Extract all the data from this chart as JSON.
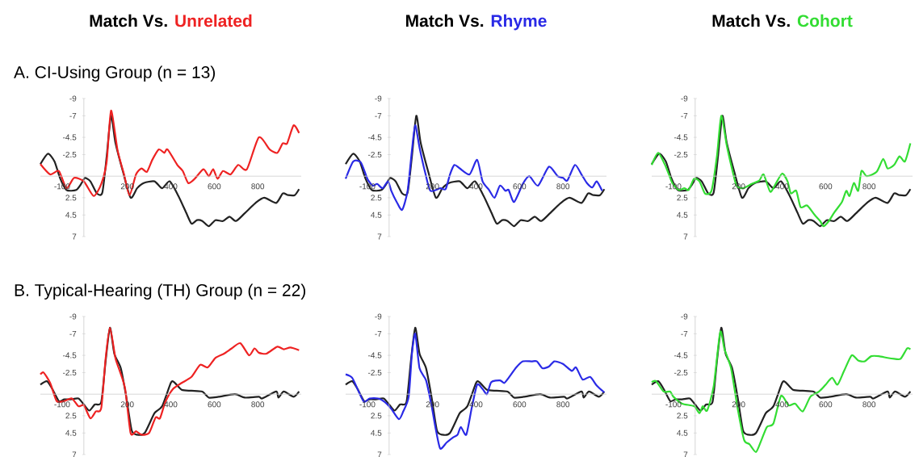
{
  "chart_data": [
    {
      "type": "line",
      "title": "Match Vs.",
      "subtitle": "A. CI-Using Group (n = 13)",
      "xlim": [
        -200,
        1000
      ],
      "ylim": [
        7,
        -9
      ],
      "xticks": [
        -100,
        200,
        400,
        600,
        800
      ],
      "yticks": [
        -9,
        -7,
        -4.5,
        -2.5,
        2.5,
        4.5,
        7
      ],
      "series": [
        {
          "color": "#222222",
          "x": [
            -200,
            -165,
            -135,
            -110,
            -80,
            -35,
            -10,
            5,
            30,
            60,
            85,
            105,
            125,
            145,
            180,
            215,
            245,
            275,
            325,
            360,
            395,
            435,
            470,
            495,
            520,
            545,
            575,
            605,
            640,
            670,
            700,
            740,
            790,
            830,
            885,
            915,
            940,
            970,
            990
          ],
          "values": [
            -1.4,
            -2.6,
            -1.7,
            0.2,
            1.6,
            1.6,
            0.8,
            0.2,
            0.6,
            2.0,
            1.9,
            -2.3,
            -7.0,
            -3.9,
            -0.5,
            2.5,
            1.4,
            0.8,
            0.6,
            1.4,
            0.6,
            2.3,
            4.2,
            5.5,
            5.1,
            5.2,
            5.8,
            5.1,
            5.2,
            4.7,
            5.2,
            4.3,
            3.1,
            2.5,
            3.1,
            2.0,
            2.2,
            2.2,
            1.5
          ]
        },
        {
          "name": "Unrelated",
          "color": "#ee2222",
          "x": [
            -200,
            -155,
            -115,
            -80,
            -45,
            0,
            45,
            80,
            105,
            125,
            155,
            185,
            210,
            240,
            265,
            290,
            315,
            345,
            370,
            385,
            430,
            455,
            480,
            510,
            550,
            575,
            595,
            615,
            640,
            675,
            710,
            750,
            805,
            855,
            890,
            915,
            935,
            965,
            990
          ],
          "values": [
            -1.4,
            -0.2,
            -0.6,
            1.4,
            0.2,
            0.6,
            2.3,
            0.9,
            -1.7,
            -7.6,
            -3.0,
            -0.2,
            2.2,
            -0.2,
            -0.9,
            -0.5,
            -1.9,
            -3.1,
            -2.7,
            -3.1,
            -1.3,
            -0.6,
            0.8,
            0.3,
            -0.8,
            0.0,
            -0.8,
            0.3,
            -0.6,
            -0.2,
            -1.3,
            -0.8,
            -4.5,
            -3.1,
            -2.7,
            -3.8,
            -3.8,
            -5.9,
            -5.0
          ]
        }
      ]
    },
    {
      "type": "line",
      "title": "Match Vs.",
      "xlim": [
        -200,
        1000
      ],
      "ylim": [
        7,
        -9
      ],
      "xticks": [
        -100,
        200,
        400,
        600,
        800
      ],
      "yticks": [
        -9,
        -7,
        -4.5,
        -2.5,
        2.5,
        4.5,
        7
      ],
      "series": [
        {
          "color": "#222222",
          "x": [
            -200,
            -165,
            -135,
            -110,
            -80,
            -35,
            -10,
            5,
            30,
            60,
            85,
            105,
            125,
            145,
            180,
            215,
            245,
            275,
            325,
            360,
            395,
            435,
            470,
            495,
            520,
            545,
            575,
            605,
            640,
            670,
            700,
            740,
            790,
            830,
            885,
            915,
            940,
            970,
            990
          ],
          "values": [
            -1.4,
            -2.6,
            -1.7,
            0.2,
            1.6,
            1.6,
            0.8,
            0.2,
            0.6,
            2.0,
            1.9,
            -2.3,
            -7.0,
            -3.9,
            -0.5,
            2.5,
            1.4,
            0.8,
            0.6,
            1.4,
            0.6,
            2.3,
            4.2,
            5.5,
            5.1,
            5.2,
            5.8,
            5.1,
            5.2,
            4.7,
            5.2,
            4.3,
            3.1,
            2.5,
            3.1,
            2.0,
            2.2,
            2.2,
            1.5
          ]
        },
        {
          "name": "Rhyme",
          "color": "#2a2ae6",
          "x": [
            -200,
            -165,
            -130,
            -100,
            -75,
            -55,
            -30,
            -5,
            10,
            35,
            60,
            85,
            105,
            120,
            140,
            165,
            190,
            235,
            260,
            280,
            300,
            325,
            370,
            405,
            430,
            460,
            485,
            510,
            535,
            550,
            575,
            615,
            645,
            685,
            735,
            775,
            800,
            820,
            855,
            885,
            910,
            935,
            955,
            980
          ],
          "values": [
            0.3,
            -1.7,
            -1.6,
            0.3,
            1.1,
            0.9,
            1.4,
            0.6,
            1.7,
            3.0,
            3.9,
            1.7,
            -3.0,
            -5.9,
            -3.3,
            -0.5,
            1.7,
            1.4,
            1.5,
            -0.2,
            -1.3,
            -0.9,
            -0.2,
            -1.9,
            0.6,
            1.6,
            2.5,
            1.1,
            1.7,
            1.6,
            3.0,
            0.9,
            0.0,
            1.1,
            -1.1,
            0.0,
            0.2,
            0.5,
            -1.3,
            -0.2,
            0.8,
            1.3,
            0.6,
            1.7
          ]
        }
      ]
    },
    {
      "type": "line",
      "title": "Match Vs.",
      "xlim": [
        -200,
        1000
      ],
      "ylim": [
        7,
        -9
      ],
      "xticks": [
        -100,
        200,
        400,
        600,
        800
      ],
      "yticks": [
        -9,
        -7,
        -4.5,
        -2.5,
        2.5,
        4.5,
        7
      ],
      "series": [
        {
          "color": "#222222",
          "x": [
            -200,
            -165,
            -135,
            -110,
            -80,
            -35,
            -10,
            5,
            30,
            60,
            85,
            105,
            125,
            145,
            180,
            215,
            245,
            275,
            325,
            360,
            395,
            435,
            470,
            495,
            520,
            545,
            575,
            605,
            640,
            670,
            700,
            740,
            790,
            830,
            885,
            915,
            940,
            970,
            990
          ],
          "values": [
            -1.4,
            -2.6,
            -1.7,
            0.2,
            1.6,
            1.6,
            0.8,
            0.2,
            0.6,
            2.0,
            1.9,
            -2.3,
            -7.0,
            -3.9,
            -0.5,
            2.5,
            1.4,
            0.8,
            0.6,
            1.4,
            0.6,
            2.3,
            4.2,
            5.5,
            5.1,
            5.2,
            5.8,
            5.1,
            5.2,
            4.7,
            5.2,
            4.3,
            3.1,
            2.5,
            3.1,
            2.0,
            2.2,
            2.2,
            1.5
          ]
        },
        {
          "name": "Cohort",
          "color": "#33dd33",
          "x": [
            -200,
            -170,
            -135,
            -105,
            -75,
            -50,
            -30,
            -5,
            20,
            45,
            75,
            100,
            120,
            145,
            170,
            190,
            220,
            260,
            295,
            315,
            345,
            370,
            400,
            425,
            440,
            465,
            485,
            515,
            550,
            575,
            590,
            615,
            640,
            675,
            695,
            710,
            730,
            750,
            765,
            790,
            835,
            865,
            885,
            915,
            940,
            965,
            990
          ],
          "values": [
            -1.3,
            -2.7,
            -1.1,
            0.8,
            1.6,
            1.4,
            1.6,
            0.3,
            0.6,
            2.0,
            1.7,
            -2.3,
            -7.0,
            -3.6,
            -0.8,
            1.1,
            1.4,
            0.9,
            0.5,
            -0.2,
            1.8,
            0.9,
            -0.3,
            0.6,
            2.0,
            1.7,
            3.6,
            3.4,
            4.5,
            5.2,
            5.8,
            5.2,
            4.2,
            3.0,
            1.7,
            2.3,
            0.8,
            1.7,
            -0.6,
            0.0,
            -0.5,
            -2.0,
            -0.9,
            -1.3,
            -2.3,
            -1.7,
            -3.8
          ]
        }
      ]
    },
    {
      "type": "line",
      "subtitle": "B. Typical-Hearing (TH) Group (n = 22)",
      "xlim": [
        -200,
        1000
      ],
      "ylim": [
        7,
        -9
      ],
      "xticks": [
        -100,
        200,
        400,
        600,
        800
      ],
      "yticks": [
        -9,
        -7,
        -4.5,
        -2.5,
        2.5,
        4.5,
        7
      ],
      "series": [
        {
          "color": "#222222",
          "x": [
            -200,
            -170,
            -145,
            -115,
            -90,
            -60,
            -25,
            0,
            25,
            50,
            80,
            100,
            120,
            140,
            170,
            195,
            220,
            245,
            280,
            325,
            360,
            400,
            415,
            450,
            495,
            545,
            575,
            620,
            695,
            740,
            805,
            820,
            885,
            895,
            920,
            965,
            990
          ],
          "values": [
            -1.1,
            -1.5,
            -0.6,
            0.8,
            0.6,
            0.6,
            0.5,
            1.2,
            1.9,
            1.2,
            0.9,
            -3.8,
            -7.7,
            -4.7,
            -3.0,
            0.3,
            4.2,
            4.7,
            4.5,
            2.2,
            1.4,
            -1.3,
            -1.4,
            -0.5,
            -0.4,
            -0.3,
            0.4,
            0.3,
            0.0,
            0.4,
            0.3,
            0.5,
            -0.3,
            0.4,
            -0.3,
            0.3,
            -0.3
          ]
        },
        {
          "color": "#ee2222",
          "x": [
            -200,
            -185,
            -155,
            -125,
            -90,
            -55,
            -25,
            0,
            30,
            55,
            80,
            100,
            120,
            145,
            165,
            190,
            215,
            240,
            265,
            300,
            330,
            350,
            375,
            410,
            450,
            495,
            535,
            570,
            605,
            645,
            680,
            720,
            760,
            785,
            805,
            840,
            890,
            920,
            950,
            990
          ],
          "values": [
            -2.3,
            -2.5,
            -1.3,
            0.8,
            0.8,
            0.5,
            1.4,
            1.3,
            2.8,
            2.0,
            1.6,
            -4.1,
            -7.7,
            -4.2,
            -2.7,
            -0.6,
            4.5,
            4.3,
            4.7,
            4.5,
            2.7,
            2.8,
            0.9,
            -0.6,
            -1.3,
            -2.0,
            -3.4,
            -3.1,
            -4.2,
            -4.7,
            -5.3,
            -5.9,
            -4.5,
            -5.3,
            -4.8,
            -4.7,
            -5.5,
            -5.2,
            -5.4,
            -5.1
          ]
        }
      ]
    },
    {
      "type": "line",
      "xlim": [
        -200,
        1000
      ],
      "ylim": [
        7,
        -9
      ],
      "xticks": [
        -100,
        200,
        400,
        600,
        800
      ],
      "yticks": [
        -9,
        -7,
        -4.5,
        -2.5,
        2.5,
        4.5,
        7
      ],
      "series": [
        {
          "color": "#222222",
          "x": [
            -200,
            -170,
            -145,
            -115,
            -90,
            -60,
            -25,
            0,
            25,
            50,
            80,
            100,
            120,
            140,
            170,
            195,
            220,
            245,
            280,
            325,
            360,
            400,
            415,
            450,
            495,
            545,
            575,
            620,
            695,
            740,
            805,
            820,
            885,
            895,
            920,
            965,
            990
          ],
          "values": [
            -1.1,
            -1.5,
            -0.6,
            0.8,
            0.6,
            0.6,
            0.5,
            1.2,
            1.9,
            1.2,
            0.9,
            -3.8,
            -7.7,
            -4.7,
            -3.0,
            0.3,
            4.2,
            4.7,
            4.5,
            2.2,
            1.4,
            -1.3,
            -1.4,
            -0.5,
            -0.4,
            -0.3,
            0.4,
            0.3,
            0.0,
            0.4,
            0.3,
            0.5,
            -0.3,
            0.4,
            -0.3,
            0.3,
            -0.3
          ]
        },
        {
          "color": "#2a2ae6",
          "x": [
            -200,
            -170,
            -140,
            -115,
            -90,
            -50,
            -20,
            10,
            45,
            65,
            90,
            105,
            120,
            140,
            170,
            195,
            215,
            235,
            265,
            295,
            315,
            330,
            355,
            380,
            405,
            430,
            450,
            470,
            510,
            530,
            550,
            585,
            615,
            655,
            680,
            705,
            735,
            760,
            800,
            840,
            860,
            890,
            925,
            955,
            990
          ],
          "values": [
            -2.3,
            -1.9,
            -0.3,
            0.9,
            0.5,
            0.5,
            0.9,
            1.7,
            2.9,
            2.0,
            0.3,
            -4.7,
            -7.0,
            -3.0,
            -1.6,
            1.3,
            4.1,
            6.3,
            5.6,
            5.0,
            4.7,
            3.8,
            4.7,
            1.6,
            -1.1,
            -0.6,
            0.0,
            -1.4,
            -1.6,
            -1.3,
            -1.9,
            -3.1,
            -3.8,
            -3.8,
            -3.8,
            -3.0,
            -3.2,
            -3.8,
            -3.5,
            -2.7,
            -3.1,
            -1.7,
            -2.0,
            -1.0,
            -0.2
          ]
        }
      ]
    },
    {
      "type": "line",
      "xlim": [
        -200,
        1000
      ],
      "ylim": [
        7,
        -9
      ],
      "xticks": [
        -100,
        200,
        400,
        600,
        800
      ],
      "yticks": [
        -9,
        -7,
        -4.5,
        -2.5,
        2.5,
        4.5,
        7
      ],
      "series": [
        {
          "color": "#222222",
          "x": [
            -200,
            -170,
            -145,
            -115,
            -90,
            -60,
            -25,
            0,
            25,
            50,
            80,
            100,
            120,
            140,
            170,
            195,
            220,
            245,
            280,
            325,
            360,
            400,
            415,
            450,
            495,
            545,
            575,
            620,
            695,
            740,
            805,
            820,
            885,
            895,
            920,
            965,
            990
          ],
          "values": [
            -1.1,
            -1.5,
            -0.6,
            0.8,
            0.6,
            0.6,
            0.5,
            1.2,
            1.9,
            1.2,
            0.9,
            -3.8,
            -7.7,
            -4.7,
            -3.0,
            0.3,
            4.2,
            4.7,
            4.5,
            2.2,
            1.4,
            -1.3,
            -1.4,
            -0.5,
            -0.4,
            -0.3,
            0.4,
            0.3,
            0.0,
            0.4,
            0.3,
            0.5,
            -0.3,
            0.4,
            -0.3,
            0.3,
            -0.3
          ]
        },
        {
          "color": "#33dd33",
          "x": [
            -200,
            -180,
            -145,
            -115,
            -100,
            -60,
            -5,
            20,
            35,
            55,
            85,
            115,
            135,
            165,
            195,
            225,
            250,
            280,
            305,
            330,
            360,
            395,
            430,
            460,
            495,
            530,
            570,
            600,
            630,
            655,
            685,
            720,
            750,
            780,
            810,
            845,
            885,
            915,
            945,
            975,
            990
          ],
          "values": [
            -1.4,
            -1.5,
            -0.3,
            -0.3,
            0.3,
            1.1,
            1.4,
            2.2,
            1.4,
            1.9,
            -0.9,
            -7.2,
            -5.2,
            -3.0,
            1.6,
            5.3,
            5.8,
            6.7,
            5.3,
            3.8,
            3.4,
            0.2,
            1.3,
            1.1,
            2.0,
            0.3,
            -0.3,
            -1.1,
            -1.9,
            -1.1,
            -2.7,
            -4.5,
            -3.9,
            -3.8,
            -4.4,
            -4.4,
            -4.2,
            -4.1,
            -4.1,
            -5.3,
            -5.2
          ]
        }
      ]
    }
  ]
}
